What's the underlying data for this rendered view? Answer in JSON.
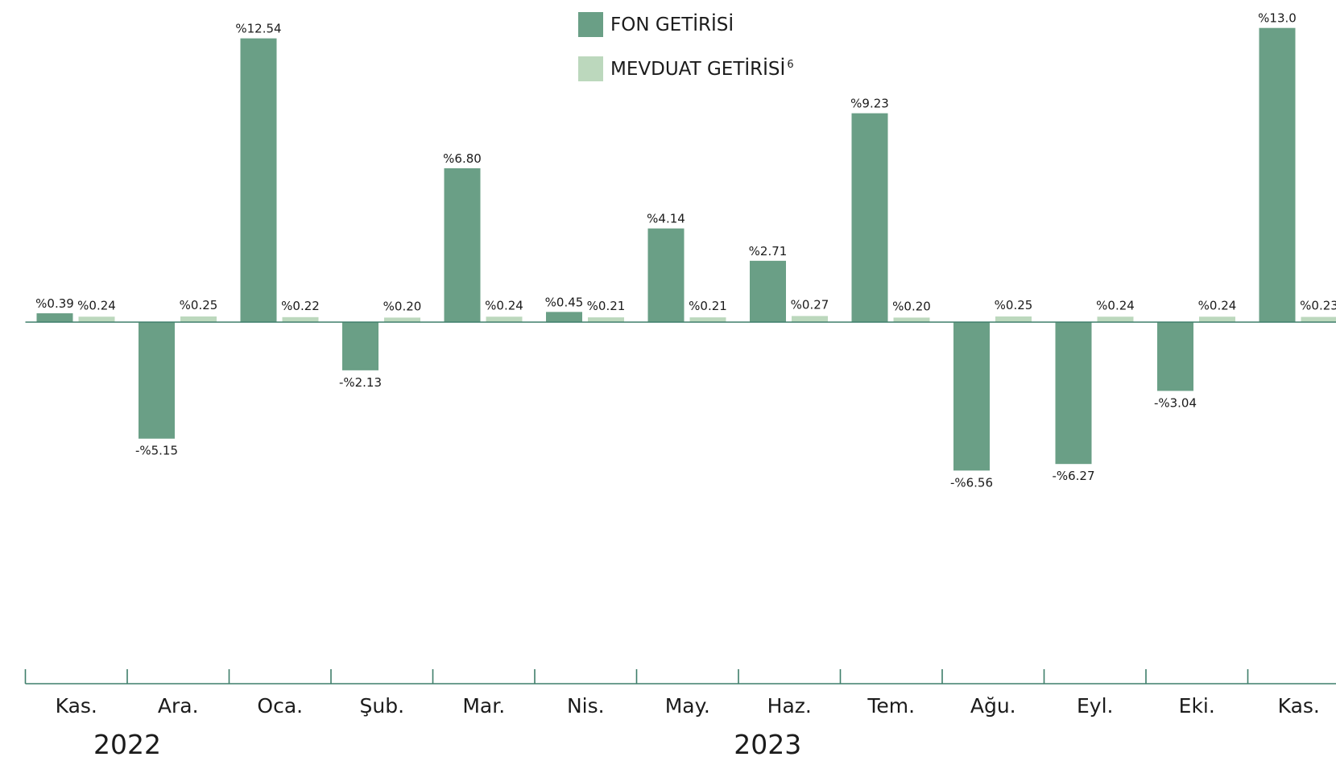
{
  "chart_data": {
    "type": "bar",
    "categories": [
      "Kas.",
      "Ara.",
      "Oca.",
      "Şub.",
      "Mar.",
      "Nis.",
      "May.",
      "Haz.",
      "Tem.",
      "Ağu.",
      "Eyl.",
      "Eki.",
      "Kas."
    ],
    "years": [
      {
        "label": "2022",
        "start_index": 0,
        "end_index": 1
      },
      {
        "label": "2023",
        "start_index": 2,
        "end_index": 12
      }
    ],
    "series": [
      {
        "name": "FON GETİRİSİ",
        "color": "#6a9f86",
        "values": [
          0.39,
          -5.15,
          12.54,
          -2.13,
          6.8,
          0.45,
          4.14,
          2.71,
          9.23,
          -6.56,
          -6.27,
          -3.04,
          13.0
        ],
        "labels": [
          "%0.39",
          "-%5.15",
          "%12.54",
          "-%2.13",
          "%6.80",
          "%0.45",
          "%4.14",
          "%2.71",
          "%9.23",
          "-%6.56",
          "-%6.27",
          "-%3.04",
          "%13.0"
        ]
      },
      {
        "name": "MEVDUAT GETİRİSİ",
        "name_superscript": "6",
        "color": "#bcd8bd",
        "values": [
          0.24,
          0.25,
          0.22,
          0.2,
          0.24,
          0.21,
          0.21,
          0.27,
          0.2,
          0.25,
          0.24,
          0.24,
          0.23
        ],
        "labels": [
          "%0.24",
          "%0.25",
          "%0.22",
          "%0.20",
          "%0.24",
          "%0.21",
          "%0.21",
          "%0.27",
          "%0.20",
          "%0.25",
          "%0.24",
          "%0.24",
          "%0.23"
        ]
      }
    ],
    "axis_color": "#3f7f6b",
    "legend_placement": "top-center",
    "grid": false
  }
}
